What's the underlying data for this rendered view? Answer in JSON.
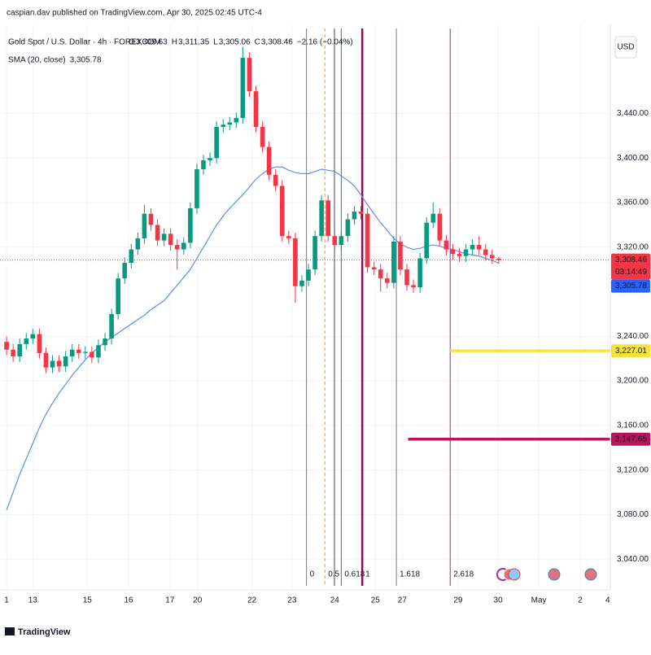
{
  "header": {
    "publisher": "caspian.dav published on TradingView.com, Apr 30, 2025 02:45 UTC-4",
    "footer_logo": "TradingView",
    "currency": "USD"
  },
  "chart_data": {
    "type": "candlestick",
    "title": "Gold Spot / U.S. Dollar · 4h · FOREXCOM",
    "ohlc_legend": [
      {
        "key": "O",
        "value": "3,309.63"
      },
      {
        "key": "H",
        "value": "3,311.35"
      },
      {
        "key": "L",
        "value": "3,305.06"
      },
      {
        "key": "C",
        "value": "3,308.46"
      }
    ],
    "change": "−2.16 (−0.04%)",
    "colors": {
      "up": "#089981",
      "down": "#f23645"
    },
    "open": [
      3235,
      3228,
      3222,
      3233,
      3238,
      3242,
      3225,
      3212,
      3218,
      3213,
      3222,
      3228,
      3225,
      3226,
      3221,
      3232,
      3238,
      3260,
      3292,
      3306,
      3318,
      3328,
      3350,
      3340,
      3326,
      3332,
      3322,
      3318,
      3324,
      3355,
      3390,
      3398,
      3400,
      3428,
      3430,
      3432,
      3436,
      3490,
      3460,
      3428,
      3410,
      3385,
      3375,
      3330,
      3328,
      3285,
      3290,
      3300,
      3330,
      3362,
      3330,
      3322,
      3330,
      3345,
      3352,
      3350,
      3302,
      3300,
      3292,
      3288,
      3325,
      3300,
      3286,
      3284,
      3310,
      3342,
      3350,
      3326,
      3318,
      3314,
      3312,
      3318,
      3322,
      3318,
      3313,
      3309.63
    ],
    "high": [
      3240,
      3233,
      3238,
      3243,
      3247,
      3247,
      3230,
      3223,
      3223,
      3227,
      3233,
      3233,
      3231,
      3231,
      3237,
      3243,
      3265,
      3297,
      3311,
      3323,
      3333,
      3358,
      3355,
      3345,
      3337,
      3337,
      3327,
      3329,
      3360,
      3395,
      3403,
      3405,
      3433,
      3435,
      3437,
      3441,
      3500,
      3495,
      3465,
      3433,
      3415,
      3390,
      3380,
      3335,
      3333,
      3295,
      3305,
      3335,
      3367,
      3367,
      3335,
      3335,
      3350,
      3357,
      3357,
      3355,
      3307,
      3305,
      3297,
      3330,
      3330,
      3305,
      3291,
      3315,
      3347,
      3360,
      3355,
      3331,
      3323,
      3319,
      3323,
      3327,
      3330,
      3323,
      3318,
      3311.35
    ],
    "low": [
      3223,
      3217,
      3217,
      3228,
      3233,
      3220,
      3207,
      3207,
      3208,
      3208,
      3217,
      3220,
      3220,
      3216,
      3216,
      3227,
      3233,
      3255,
      3287,
      3301,
      3313,
      3323,
      3335,
      3321,
      3321,
      3317,
      3300,
      3313,
      3319,
      3350,
      3385,
      3393,
      3395,
      3423,
      3425,
      3427,
      3431,
      3455,
      3423,
      3405,
      3380,
      3370,
      3325,
      3323,
      3270,
      3280,
      3285,
      3295,
      3325,
      3325,
      3317,
      3317,
      3325,
      3340,
      3345,
      3297,
      3295,
      3280,
      3283,
      3283,
      3295,
      3281,
      3279,
      3279,
      3305,
      3337,
      3321,
      3313,
      3309,
      3307,
      3307,
      3313,
      3313,
      3308,
      3305,
      3305.06
    ],
    "close": [
      3228,
      3222,
      3233,
      3238,
      3242,
      3225,
      3212,
      3218,
      3213,
      3222,
      3228,
      3225,
      3226,
      3221,
      3232,
      3238,
      3260,
      3292,
      3306,
      3318,
      3328,
      3350,
      3340,
      3326,
      3332,
      3322,
      3318,
      3324,
      3355,
      3390,
      3398,
      3400,
      3428,
      3430,
      3432,
      3436,
      3490,
      3460,
      3428,
      3410,
      3385,
      3375,
      3330,
      3328,
      3285,
      3290,
      3300,
      3330,
      3362,
      3330,
      3322,
      3330,
      3345,
      3352,
      3350,
      3302,
      3300,
      3292,
      3288,
      3325,
      3300,
      3286,
      3284,
      3310,
      3342,
      3350,
      3326,
      3318,
      3314,
      3312,
      3318,
      3322,
      3318,
      3313,
      3310,
      3308.46
    ],
    "overlays": [
      {
        "name": "SMA (20, close)",
        "color": "#5b8def",
        "last_label": "3,305.78",
        "last_value": 3305.78,
        "values": [
          3084,
          3100,
          3116,
          3130,
          3144,
          3158,
          3170,
          3180,
          3189,
          3197,
          3205,
          3212,
          3219,
          3225,
          3230,
          3235,
          3239,
          3243,
          3247,
          3251,
          3255,
          3259,
          3264,
          3268,
          3272,
          3279,
          3286,
          3293,
          3300,
          3310,
          3320,
          3330,
          3340,
          3348,
          3355,
          3361,
          3367,
          3374,
          3381,
          3386,
          3390,
          3392,
          3392,
          3389,
          3387,
          3386,
          3386,
          3388,
          3390,
          3389,
          3388,
          3384,
          3380,
          3375,
          3367,
          3358,
          3350,
          3342,
          3335,
          3328,
          3323,
          3320,
          3318,
          3319,
          3321,
          3322,
          3321,
          3319,
          3318,
          3316,
          3314,
          3313,
          3312,
          3310,
          3308,
          3305.78
        ]
      }
    ],
    "last_price": {
      "value": 3308.46,
      "label": "3,308.46",
      "countdown": "03:14:49",
      "color": "#f23645"
    },
    "xlim": [
      -1,
      92
    ],
    "xticks": [
      {
        "value": 0,
        "label": "1"
      },
      {
        "value": 4,
        "label": "13"
      },
      {
        "value": 12.3,
        "label": "15"
      },
      {
        "value": 18.6,
        "label": "16"
      },
      {
        "value": 24.9,
        "label": "17"
      },
      {
        "value": 29.1,
        "label": "20"
      },
      {
        "value": 37.4,
        "label": "22"
      },
      {
        "value": 43.5,
        "label": "23"
      },
      {
        "value": 50,
        "label": "24"
      },
      {
        "value": 56.2,
        "label": "25"
      },
      {
        "value": 60.3,
        "label": "27"
      },
      {
        "value": 68.8,
        "label": "29"
      },
      {
        "value": 74.9,
        "label": "30"
      },
      {
        "value": 81.1,
        "label": "May"
      },
      {
        "value": 87.4,
        "label": "2"
      },
      {
        "value": 91.6,
        "label": "4"
      }
    ],
    "ylim": [
      3016,
      3520
    ],
    "yticks": [
      {
        "value": 3040,
        "label": "3,040.00"
      },
      {
        "value": 3080,
        "label": "3,080.00"
      },
      {
        "value": 3120,
        "label": "3,120.00"
      },
      {
        "value": 3160,
        "label": "3,160.00"
      },
      {
        "value": 3200,
        "label": "3,200.00"
      },
      {
        "value": 3240,
        "label": "3,240.00"
      },
      {
        "value": 3320,
        "label": "3,320.00"
      },
      {
        "value": 3360,
        "label": "3,360.00"
      },
      {
        "value": 3400,
        "label": "3,400.00"
      },
      {
        "value": 3440,
        "label": "3,440.00"
      }
    ],
    "grid": true,
    "hlines": [
      {
        "value": 3227.01,
        "label": "3,227.01",
        "x_start": 67.6,
        "color": "#f7e43b",
        "text_color": "#131722"
      },
      {
        "value": 3147.65,
        "label": "3,147.65",
        "x_start": 61.2,
        "color": "#b7145a",
        "text_color": "#ffffff"
      }
    ],
    "fib_time": [
      {
        "level": 0,
        "x": 45.7,
        "color": "#787b86"
      },
      {
        "level": 0.5,
        "x": 48.5,
        "color": "#ff9800"
      },
      {
        "level": 0.618,
        "x": 51,
        "color": "#2962ff"
      },
      {
        "level": 1,
        "x": 54.2,
        "color": "#880e4f"
      },
      {
        "level": 1.618,
        "x": 59.4,
        "color": "#787b86"
      },
      {
        "level": 2.618,
        "x": 67.6,
        "color": "#9c27b0"
      }
    ]
  }
}
